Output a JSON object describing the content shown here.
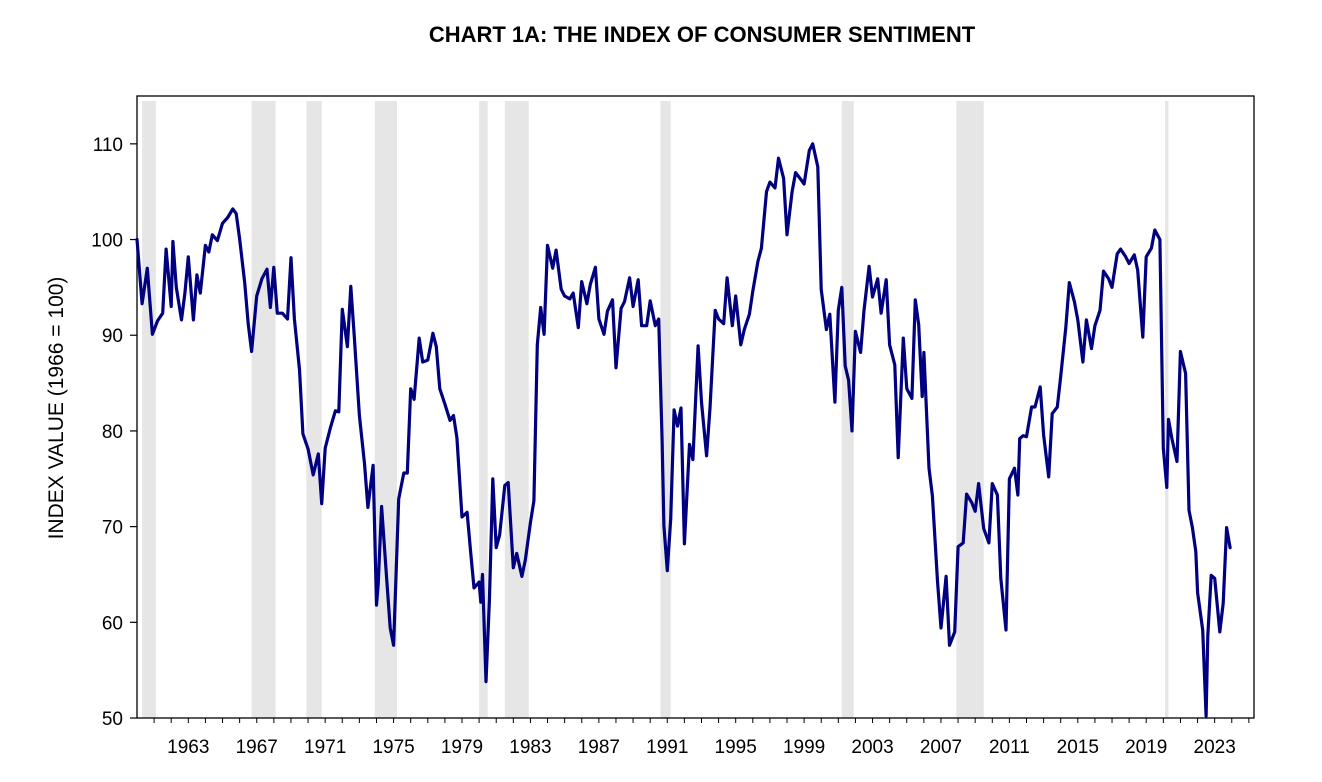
{
  "chart_data": {
    "type": "line",
    "title": "CHART 1A: THE INDEX OF CONSUMER SENTIMENT",
    "xlabel": "",
    "ylabel": "INDEX VALUE (1966 = 100)",
    "xlim": [
      1960.0,
      2025.3
    ],
    "ylim": [
      50,
      115
    ],
    "y_ticks": [
      50,
      60,
      70,
      80,
      90,
      100,
      110
    ],
    "x_ticks": [
      "1963",
      "1967",
      "1971",
      "1975",
      "1979",
      "1983",
      "1987",
      "1991",
      "1995",
      "1999",
      "2003",
      "2007",
      "2011",
      "2015",
      "2019",
      "2023"
    ],
    "x_tick_values": [
      1963,
      1967,
      1971,
      1975,
      1979,
      1983,
      1987,
      1991,
      1995,
      1999,
      2003,
      2007,
      2011,
      2015,
      2019,
      2023
    ],
    "grid": false,
    "recession_shading_color": "#e6e6e6",
    "recessions": [
      [
        1960.3,
        1961.1
      ],
      [
        1966.7,
        1968.1
      ],
      [
        1969.9,
        1970.8
      ],
      [
        1973.9,
        1975.2
      ],
      [
        1980.0,
        1980.5
      ],
      [
        1981.5,
        1982.9
      ],
      [
        1990.6,
        1991.2
      ],
      [
        2001.2,
        2001.9
      ],
      [
        2007.9,
        2009.5
      ],
      [
        2020.1,
        2020.3
      ]
    ],
    "series": [
      {
        "color": "#000080",
        "x": [
          1960.0,
          1960.3,
          1960.6,
          1960.9,
          1961.2,
          1961.5,
          1961.7,
          1962.0,
          1962.1,
          1962.3,
          1962.6,
          1962.8,
          1963.0,
          1963.3,
          1963.5,
          1963.7,
          1964.0,
          1964.2,
          1964.4,
          1964.7,
          1965.0,
          1965.3,
          1965.6,
          1965.8,
          1966.0,
          1966.3,
          1966.5,
          1966.7,
          1967.0,
          1967.3,
          1967.6,
          1967.8,
          1968.0,
          1968.2,
          1968.5,
          1968.8,
          1969.0,
          1969.2,
          1969.5,
          1969.7,
          1970.0,
          1970.3,
          1970.6,
          1970.8,
          1971.0,
          1971.3,
          1971.6,
          1971.8,
          1972.0,
          1972.3,
          1972.5,
          1972.7,
          1973.0,
          1973.3,
          1973.5,
          1973.8,
          1974.0,
          1974.1,
          1974.3,
          1974.6,
          1974.8,
          1975.0,
          1975.3,
          1975.6,
          1975.8,
          1976.0,
          1976.2,
          1976.5,
          1976.7,
          1977.0,
          1977.3,
          1977.5,
          1977.7,
          1978.0,
          1978.3,
          1978.5,
          1978.7,
          1979.0,
          1979.3,
          1979.5,
          1979.7,
          1980.0,
          1980.1,
          1980.2,
          1980.4,
          1980.6,
          1980.8,
          1981.0,
          1981.2,
          1981.5,
          1981.7,
          1982.0,
          1982.2,
          1982.5,
          1982.7,
          1983.0,
          1983.2,
          1983.4,
          1983.6,
          1983.8,
          1984.0,
          1984.3,
          1984.5,
          1984.8,
          1985.0,
          1985.3,
          1985.5,
          1985.8,
          1986.0,
          1986.3,
          1986.5,
          1986.8,
          1987.0,
          1987.3,
          1987.5,
          1987.8,
          1988.0,
          1988.3,
          1988.5,
          1988.8,
          1989.0,
          1989.3,
          1989.5,
          1989.8,
          1990.0,
          1990.3,
          1990.5,
          1990.7,
          1990.8,
          1991.0,
          1991.2,
          1991.4,
          1991.6,
          1991.8,
          1992.0,
          1992.3,
          1992.5,
          1992.8,
          1993.0,
          1993.3,
          1993.5,
          1993.8,
          1994.0,
          1994.3,
          1994.5,
          1994.8,
          1995.0,
          1995.3,
          1995.5,
          1995.8,
          1996.0,
          1996.3,
          1996.5,
          1996.8,
          1997.0,
          1997.3,
          1997.5,
          1997.8,
          1998.0,
          1998.3,
          1998.5,
          1998.8,
          1999.0,
          1999.3,
          1999.5,
          1999.8,
          2000.0,
          2000.3,
          2000.5,
          2000.8,
          2001.0,
          2001.2,
          2001.4,
          2001.6,
          2001.8,
          2002.0,
          2002.3,
          2002.5,
          2002.8,
          2003.0,
          2003.3,
          2003.5,
          2003.8,
          2004.0,
          2004.3,
          2004.5,
          2004.8,
          2005.0,
          2005.3,
          2005.5,
          2005.7,
          2005.9,
          2006.0,
          2006.3,
          2006.5,
          2006.8,
          2007.0,
          2007.3,
          2007.5,
          2007.8,
          2008.0,
          2008.3,
          2008.5,
          2008.8,
          2009.0,
          2009.2,
          2009.5,
          2009.8,
          2010.0,
          2010.3,
          2010.5,
          2010.8,
          2011.0,
          2011.3,
          2011.5,
          2011.6,
          2011.8,
          2012.0,
          2012.3,
          2012.5,
          2012.8,
          2013.0,
          2013.3,
          2013.5,
          2013.8,
          2014.0,
          2014.3,
          2014.5,
          2014.8,
          2015.0,
          2015.3,
          2015.5,
          2015.8,
          2016.0,
          2016.3,
          2016.5,
          2016.8,
          2017.0,
          2017.3,
          2017.5,
          2017.8,
          2018.0,
          2018.3,
          2018.5,
          2018.8,
          2019.0,
          2019.3,
          2019.5,
          2019.8,
          2020.0,
          2020.2,
          2020.3,
          2020.5,
          2020.8,
          2021.0,
          2021.3,
          2021.5,
          2021.7,
          2021.9,
          2022.0,
          2022.3,
          2022.5,
          2022.6,
          2022.8,
          2023.0,
          2023.3,
          2023.5,
          2023.7,
          2023.9
        ],
        "values": [
          100,
          93.3,
          97.0,
          90.1,
          91.5,
          92.3,
          99.0,
          93.0,
          99.8,
          95.0,
          91.6,
          94.4,
          98.2,
          91.6,
          96.3,
          94.4,
          99.4,
          98.7,
          100.5,
          99.9,
          101.7,
          102.3,
          103.2,
          102.7,
          100.1,
          95.4,
          91.2,
          88.3,
          94.1,
          95.9,
          96.9,
          92.9,
          97.1,
          92.3,
          92.3,
          91.7,
          98.1,
          91.7,
          86.4,
          79.7,
          78.1,
          75.4,
          77.6,
          72.4,
          78.2,
          80.3,
          82.1,
          82.0,
          92.7,
          88.8,
          95.1,
          90.0,
          81.6,
          76.6,
          72.0,
          76.4,
          61.8,
          64.0,
          72.1,
          64.5,
          59.4,
          57.6,
          72.9,
          75.6,
          75.6,
          84.4,
          83.3,
          89.7,
          87.2,
          87.4,
          90.2,
          88.8,
          84.4,
          82.8,
          81.1,
          81.6,
          79.3,
          71.0,
          71.5,
          67.4,
          63.6,
          64.2,
          62.1,
          65.0,
          53.8,
          62.3,
          75.0,
          67.8,
          69.1,
          74.3,
          74.6,
          65.7,
          67.2,
          64.8,
          66.5,
          70.4,
          72.7,
          89.0,
          92.9,
          90.1,
          99.4,
          97.0,
          98.9,
          94.8,
          94.1,
          93.8,
          94.4,
          90.8,
          95.6,
          93.3,
          95.3,
          97.1,
          91.7,
          90.1,
          92.5,
          93.7,
          86.6,
          92.8,
          93.5,
          96.0,
          93.0,
          95.8,
          91.0,
          91.0,
          93.6,
          91.0,
          91.7,
          79.0,
          70.1,
          65.4,
          70.8,
          82.2,
          80.5,
          82.4,
          68.2,
          78.6,
          77.0,
          88.9,
          83.0,
          77.4,
          82.4,
          92.6,
          91.7,
          91.2,
          96.0,
          91.0,
          94.1,
          89.0,
          90.6,
          92.2,
          94.6,
          97.7,
          99.1,
          105.0,
          106.0,
          105.4,
          108.5,
          106.4,
          100.5,
          105.0,
          107.0,
          106.3,
          105.8,
          109.3,
          110.0,
          107.6,
          94.8,
          90.6,
          92.2,
          83.0,
          92.6,
          95.0,
          86.8,
          85.3,
          80.0,
          90.4,
          88.2,
          92.6,
          97.2,
          94.0,
          95.9,
          92.3,
          95.8,
          89.0,
          86.9,
          77.2,
          89.7,
          84.4,
          83.4,
          93.7,
          91.1,
          83.6,
          88.2,
          76.1,
          73.2,
          64.3,
          59.4,
          64.8,
          57.6,
          59.0,
          67.9,
          68.3,
          73.4,
          72.5,
          71.6,
          74.5,
          69.8,
          68.3,
          74.5,
          73.3,
          64.6,
          59.2,
          75.0,
          76.1,
          73.3,
          79.2,
          79.5,
          79.4,
          82.5,
          82.5,
          84.6,
          79.6,
          75.2,
          81.8,
          82.5,
          85.7,
          90.8,
          95.5,
          93.5,
          91.6,
          87.2,
          91.6,
          88.6,
          91.0,
          92.6,
          96.7,
          95.9,
          95.0,
          98.5,
          99.0,
          98.2,
          97.5,
          98.4,
          96.8,
          89.8,
          98.2,
          99.1,
          101.0,
          100.0,
          78.2,
          74.1,
          81.2,
          79.2,
          76.8,
          88.3,
          86.0,
          71.7,
          69.9,
          67.4,
          63.1,
          59.2,
          50.2,
          58.6,
          64.9,
          64.6,
          59.0,
          62.0,
          69.9,
          67.8
        ]
      }
    ]
  }
}
